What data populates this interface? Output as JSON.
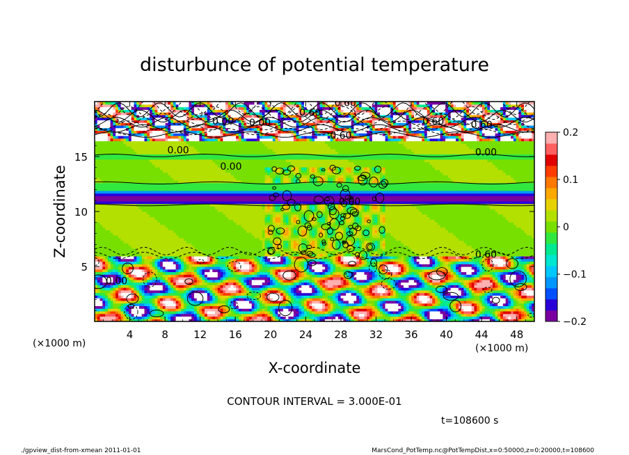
{
  "chart_data": {
    "type": "heatmap",
    "title": "disturbunce of potential temperature",
    "xlabel": "X-coordinate",
    "ylabel": "Z-coordinate",
    "x_unit": "(×1000 m)",
    "y_unit": "(×1000 m)",
    "xlim": [
      0,
      50
    ],
    "ylim": [
      0,
      20
    ],
    "x_ticks": [
      "4",
      "8",
      "12",
      "16",
      "20",
      "24",
      "28",
      "32",
      "36",
      "40",
      "44",
      "48"
    ],
    "y_ticks": [
      "5",
      "10",
      "15"
    ],
    "colorbar": {
      "min": -0.2,
      "max": 0.2,
      "tick_labels": [
        "0.2",
        "0.1",
        "0",
        "−0.1",
        "−0.2"
      ],
      "colors": [
        "#7a00a0",
        "#2a00d8",
        "#0050ff",
        "#0096ff",
        "#00c8ff",
        "#00e6d0",
        "#00e890",
        "#30e840",
        "#78e000",
        "#b4e000",
        "#e6d200",
        "#ffa800",
        "#ff7800",
        "#ff3c00",
        "#e00000",
        "#ff6060",
        "#ffb0b0"
      ]
    },
    "contour_labels": [
      "0.00",
      "0.00",
      "0.00",
      "0.00",
      "0.00",
      "0.00",
      "0.60",
      "0.60",
      "0.60",
      "0.60",
      "0.60",
      "0.60",
      "0.00"
    ],
    "contour_interval_text": "CONTOUR INTERVAL = 3.000E-01",
    "time_text": "t=108600 s"
  },
  "footer": {
    "left": "./gpview_dist-from-xmean  2011-01-01",
    "right": "MarsCond_PotTemp.nc@PotTempDist,x=0:50000,z=0:20000,t=108600"
  }
}
